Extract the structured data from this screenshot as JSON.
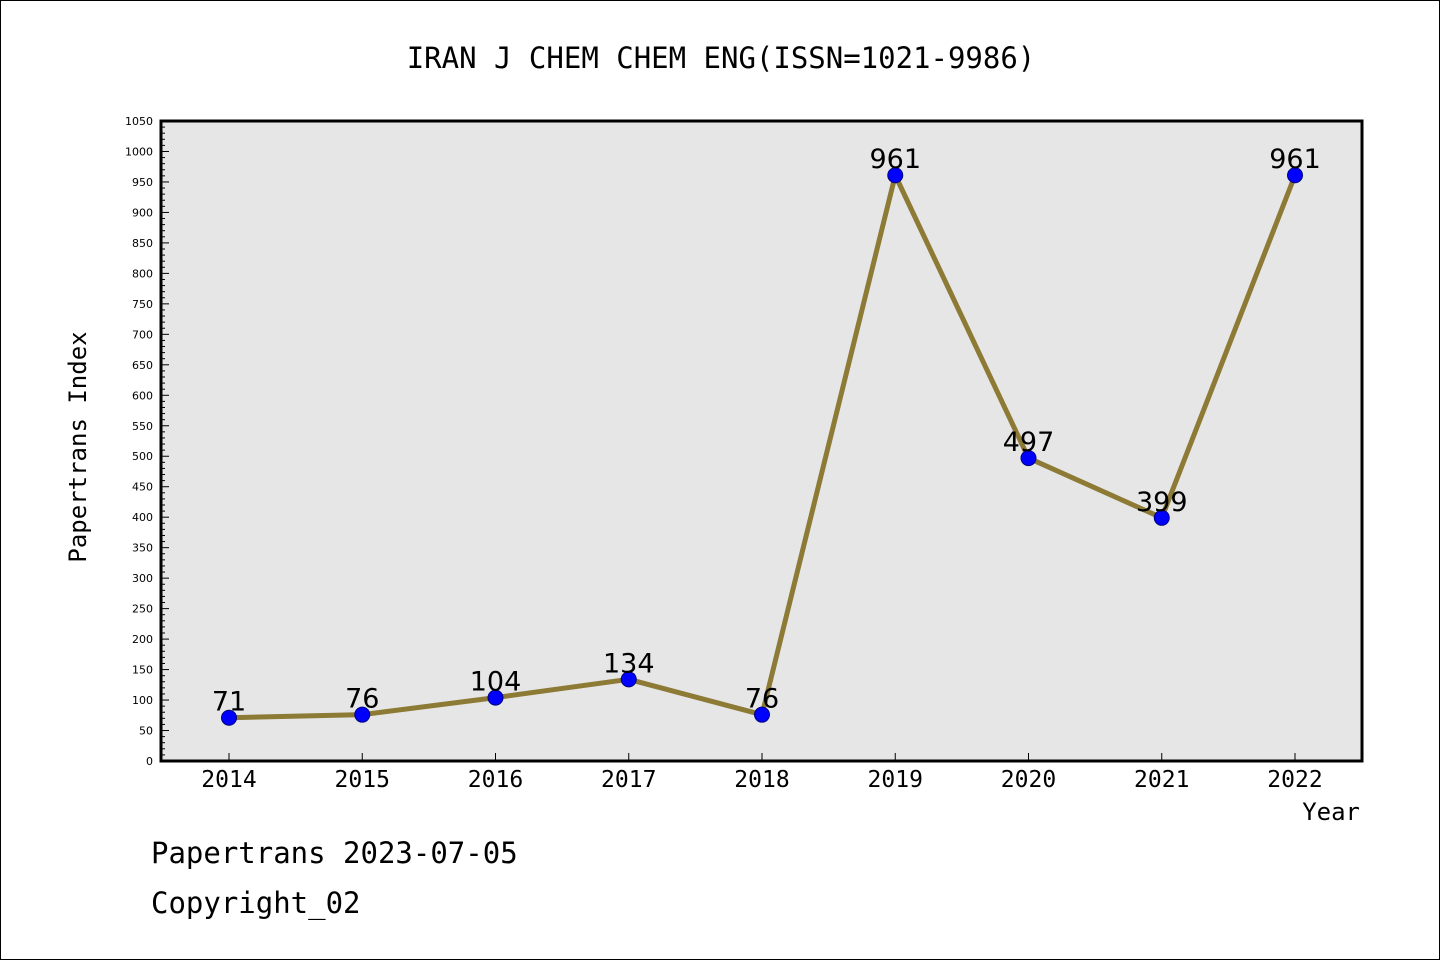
{
  "footer": {
    "line1": "Papertrans 2023-07-05",
    "line2": "Copyright_02"
  },
  "colors": {
    "plot_background": "#e6e6e6",
    "line": "#8c7a35",
    "marker": "#0000ff",
    "marker_edge": "#000080",
    "axis": "#000000"
  },
  "chart_data": {
    "type": "line",
    "title": "IRAN J CHEM CHEM ENG(ISSN=1021-9986)",
    "xlabel": "Year",
    "ylabel": "Papertrans Index",
    "categories": [
      "2014",
      "2015",
      "2016",
      "2017",
      "2018",
      "2019",
      "2020",
      "2021",
      "2022"
    ],
    "values": [
      71,
      76,
      104,
      134,
      76,
      961,
      497,
      399,
      961
    ],
    "data_labels": [
      "71",
      "76",
      "104",
      "134",
      "76",
      "961",
      "497",
      "399",
      "961"
    ],
    "ylim": [
      0,
      1050
    ],
    "ytick_step": 50,
    "grid": false,
    "legend": "none",
    "markers": "circle"
  }
}
